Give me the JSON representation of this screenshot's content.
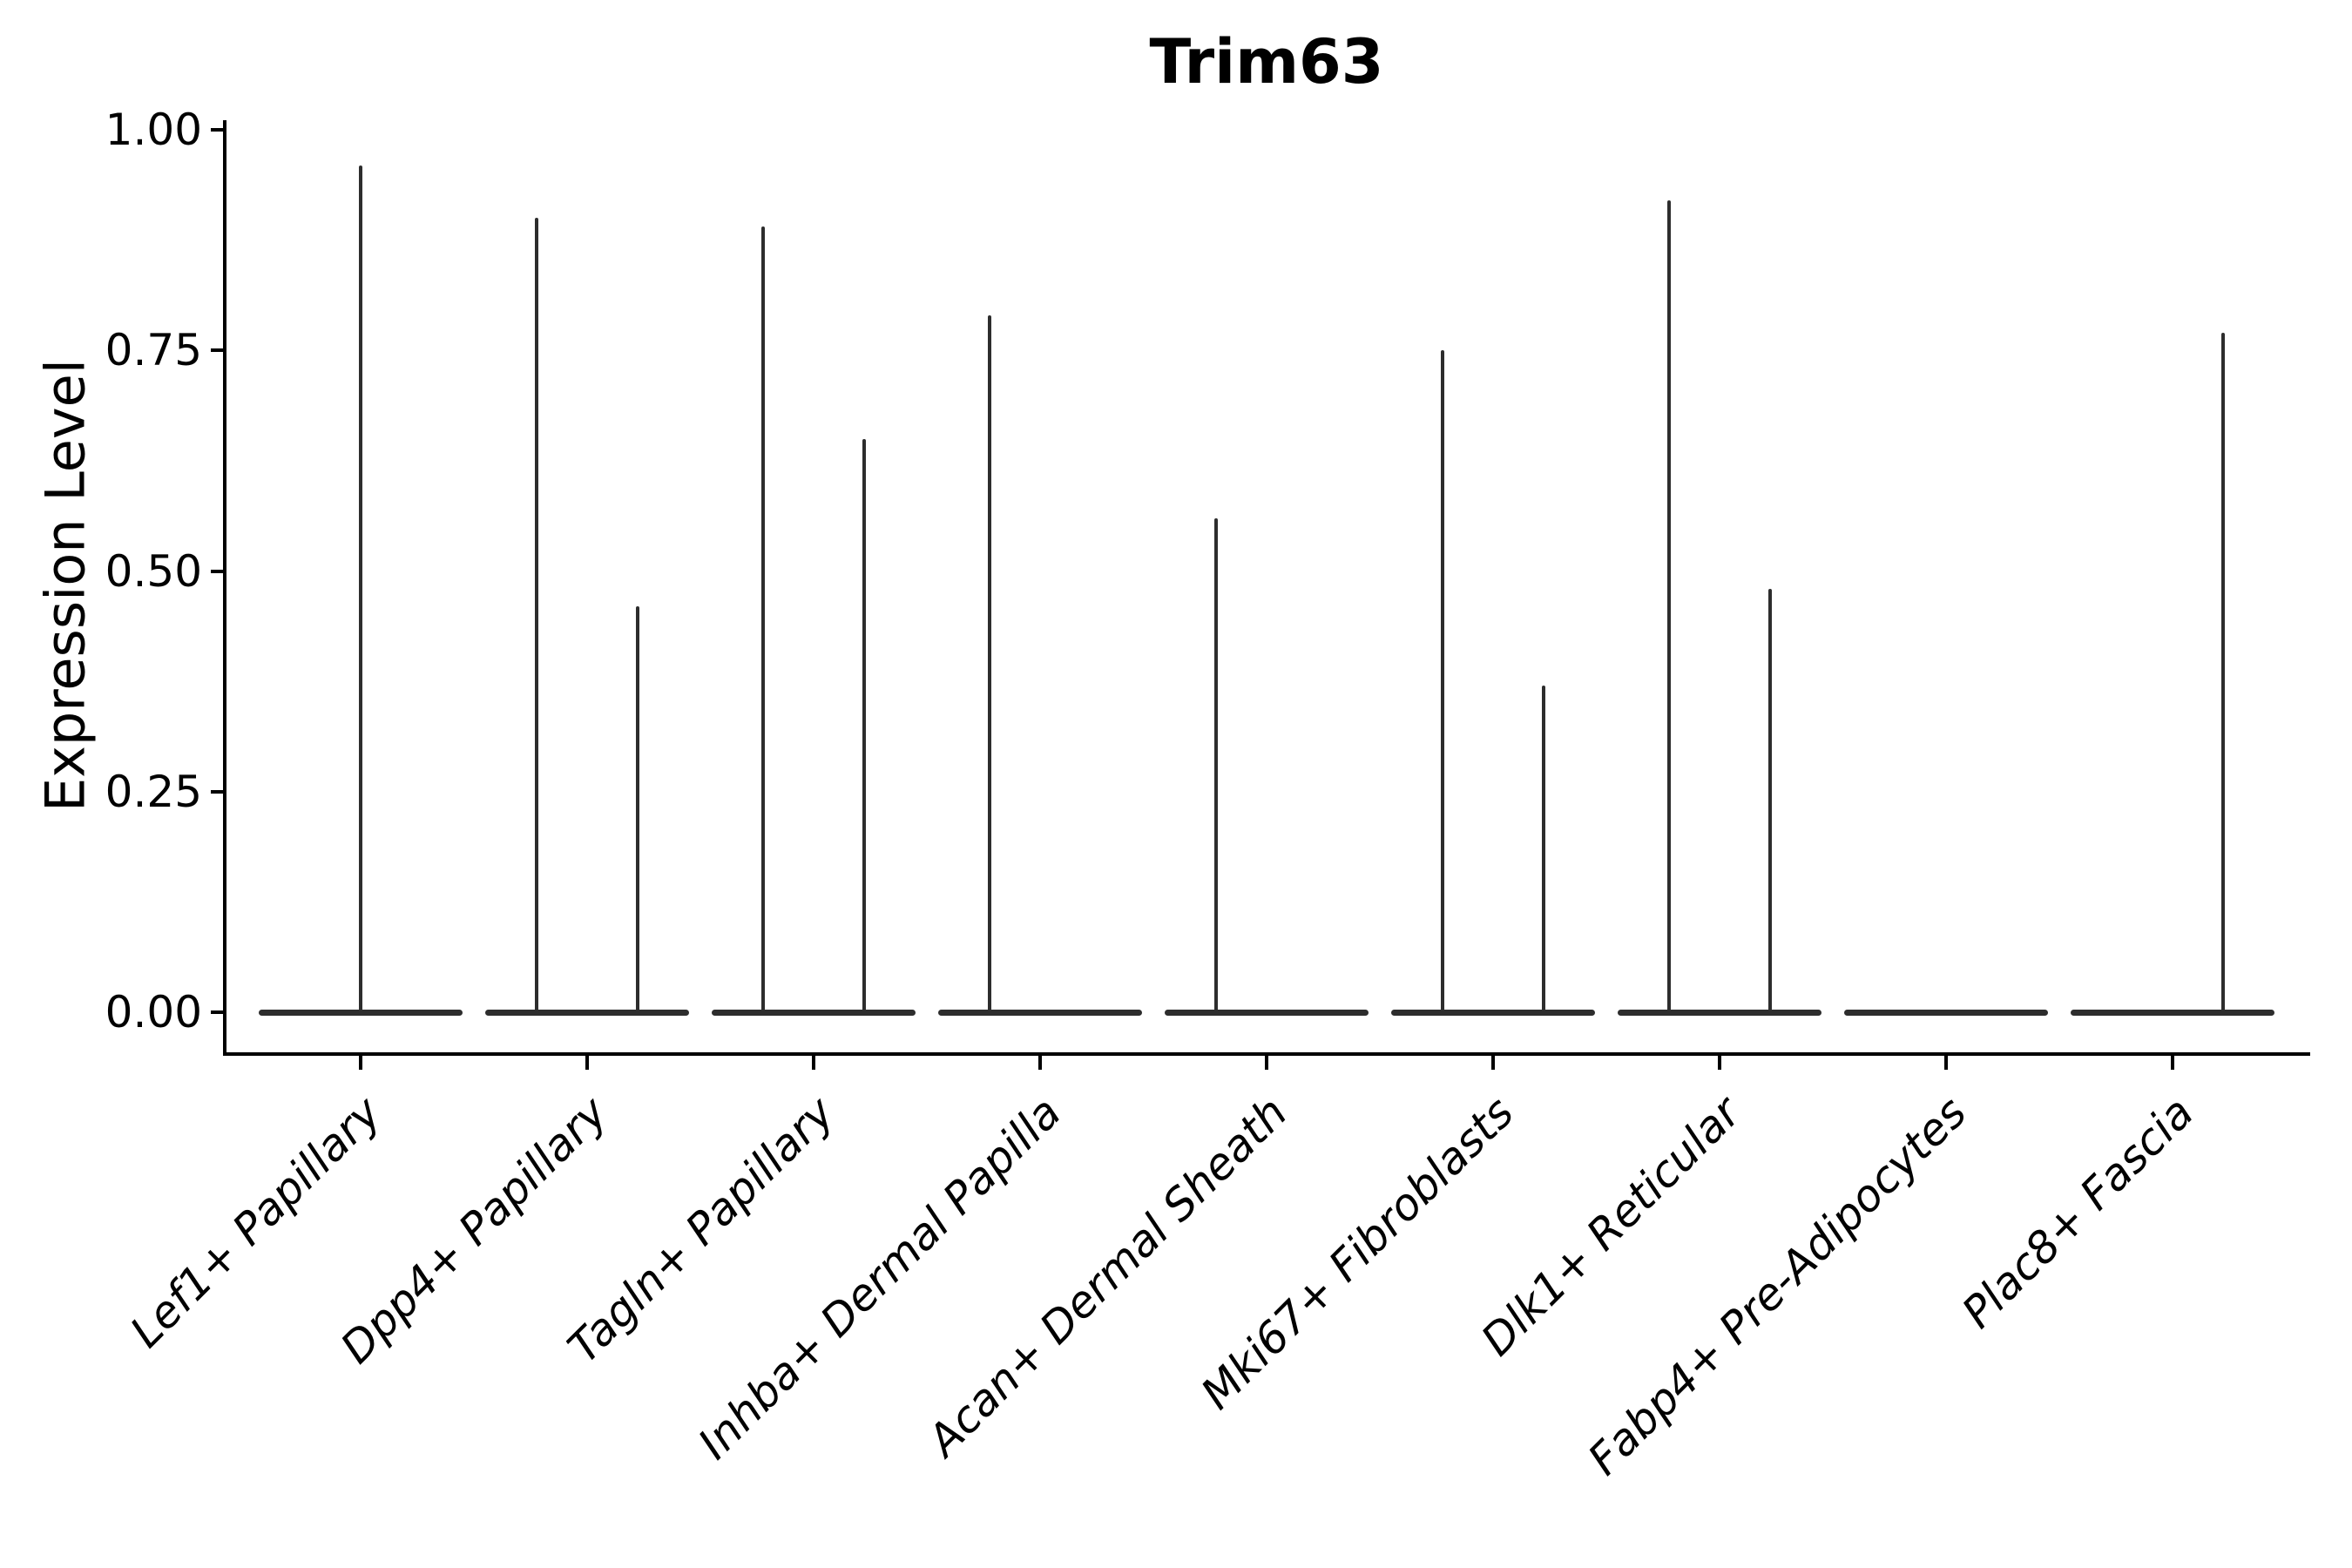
{
  "title": "Trim63",
  "y_axis": {
    "label": "Expression Level",
    "tick_labels": [
      "0.00",
      "0.25",
      "0.50",
      "0.75",
      "1.00"
    ],
    "tick_values": [
      0,
      0.25,
      0.5,
      0.75,
      1.0
    ]
  },
  "x_axis": {
    "categories": [
      "Lef1+ Papillary",
      "Dpp4+ Papillary",
      "Tagln+ Papillary",
      "Inhba+ Dermal Papilla",
      "Acan+ Dermal Sheath",
      "Mki67+ Fibroblasts",
      "Dlk1+ Reticular",
      "Fabp4+ Pre-Adipocytes",
      "Plac8+ Fascia"
    ]
  },
  "colors": {
    "background": "#ffffff",
    "axis": "#000000",
    "violin": "#2d2d2d"
  },
  "chart_data": {
    "type": "violin",
    "title": "Trim63",
    "xlabel": "",
    "ylabel": "Expression Level",
    "ylim": [
      0,
      1.0
    ],
    "y_ticks": [
      0,
      0.25,
      0.5,
      0.75,
      1.0
    ],
    "grid": false,
    "legend": "none",
    "x_tick_angle": 45,
    "categories": [
      "Lef1+ Papillary",
      "Dpp4+ Papillary",
      "Tagln+ Papillary",
      "Inhba+ Dermal Papilla",
      "Acan+ Dermal Sheath",
      "Mki67+ Fibroblasts",
      "Dlk1+ Reticular",
      "Fabp4+ Pre-Adipocytes",
      "Plac8+ Fascia"
    ],
    "baseline_value": 0.0,
    "series": [
      {
        "category": "Lef1+ Papillary",
        "spikes": [
          {
            "slot": "center",
            "value": 0.96
          }
        ]
      },
      {
        "category": "Dpp4+ Papillary",
        "spikes": [
          {
            "slot": "left",
            "value": 0.9
          },
          {
            "slot": "right",
            "value": 0.46
          }
        ]
      },
      {
        "category": "Tagln+ Papillary",
        "spikes": [
          {
            "slot": "left",
            "value": 0.89
          },
          {
            "slot": "right",
            "value": 0.65
          }
        ]
      },
      {
        "category": "Inhba+ Dermal Papilla",
        "spikes": [
          {
            "slot": "left",
            "value": 0.79
          }
        ]
      },
      {
        "category": "Acan+ Dermal Sheath",
        "spikes": [
          {
            "slot": "left",
            "value": 0.56
          }
        ]
      },
      {
        "category": "Mki67+ Fibroblasts",
        "spikes": [
          {
            "slot": "left",
            "value": 0.75
          },
          {
            "slot": "right",
            "value": 0.37
          }
        ]
      },
      {
        "category": "Dlk1+ Reticular",
        "spikes": [
          {
            "slot": "left",
            "value": 0.92
          },
          {
            "slot": "right",
            "value": 0.48
          }
        ]
      },
      {
        "category": "Fabp4+ Pre-Adipocytes",
        "spikes": []
      },
      {
        "category": "Plac8+ Fascia",
        "spikes": [
          {
            "slot": "right",
            "value": 0.77
          }
        ]
      }
    ]
  }
}
